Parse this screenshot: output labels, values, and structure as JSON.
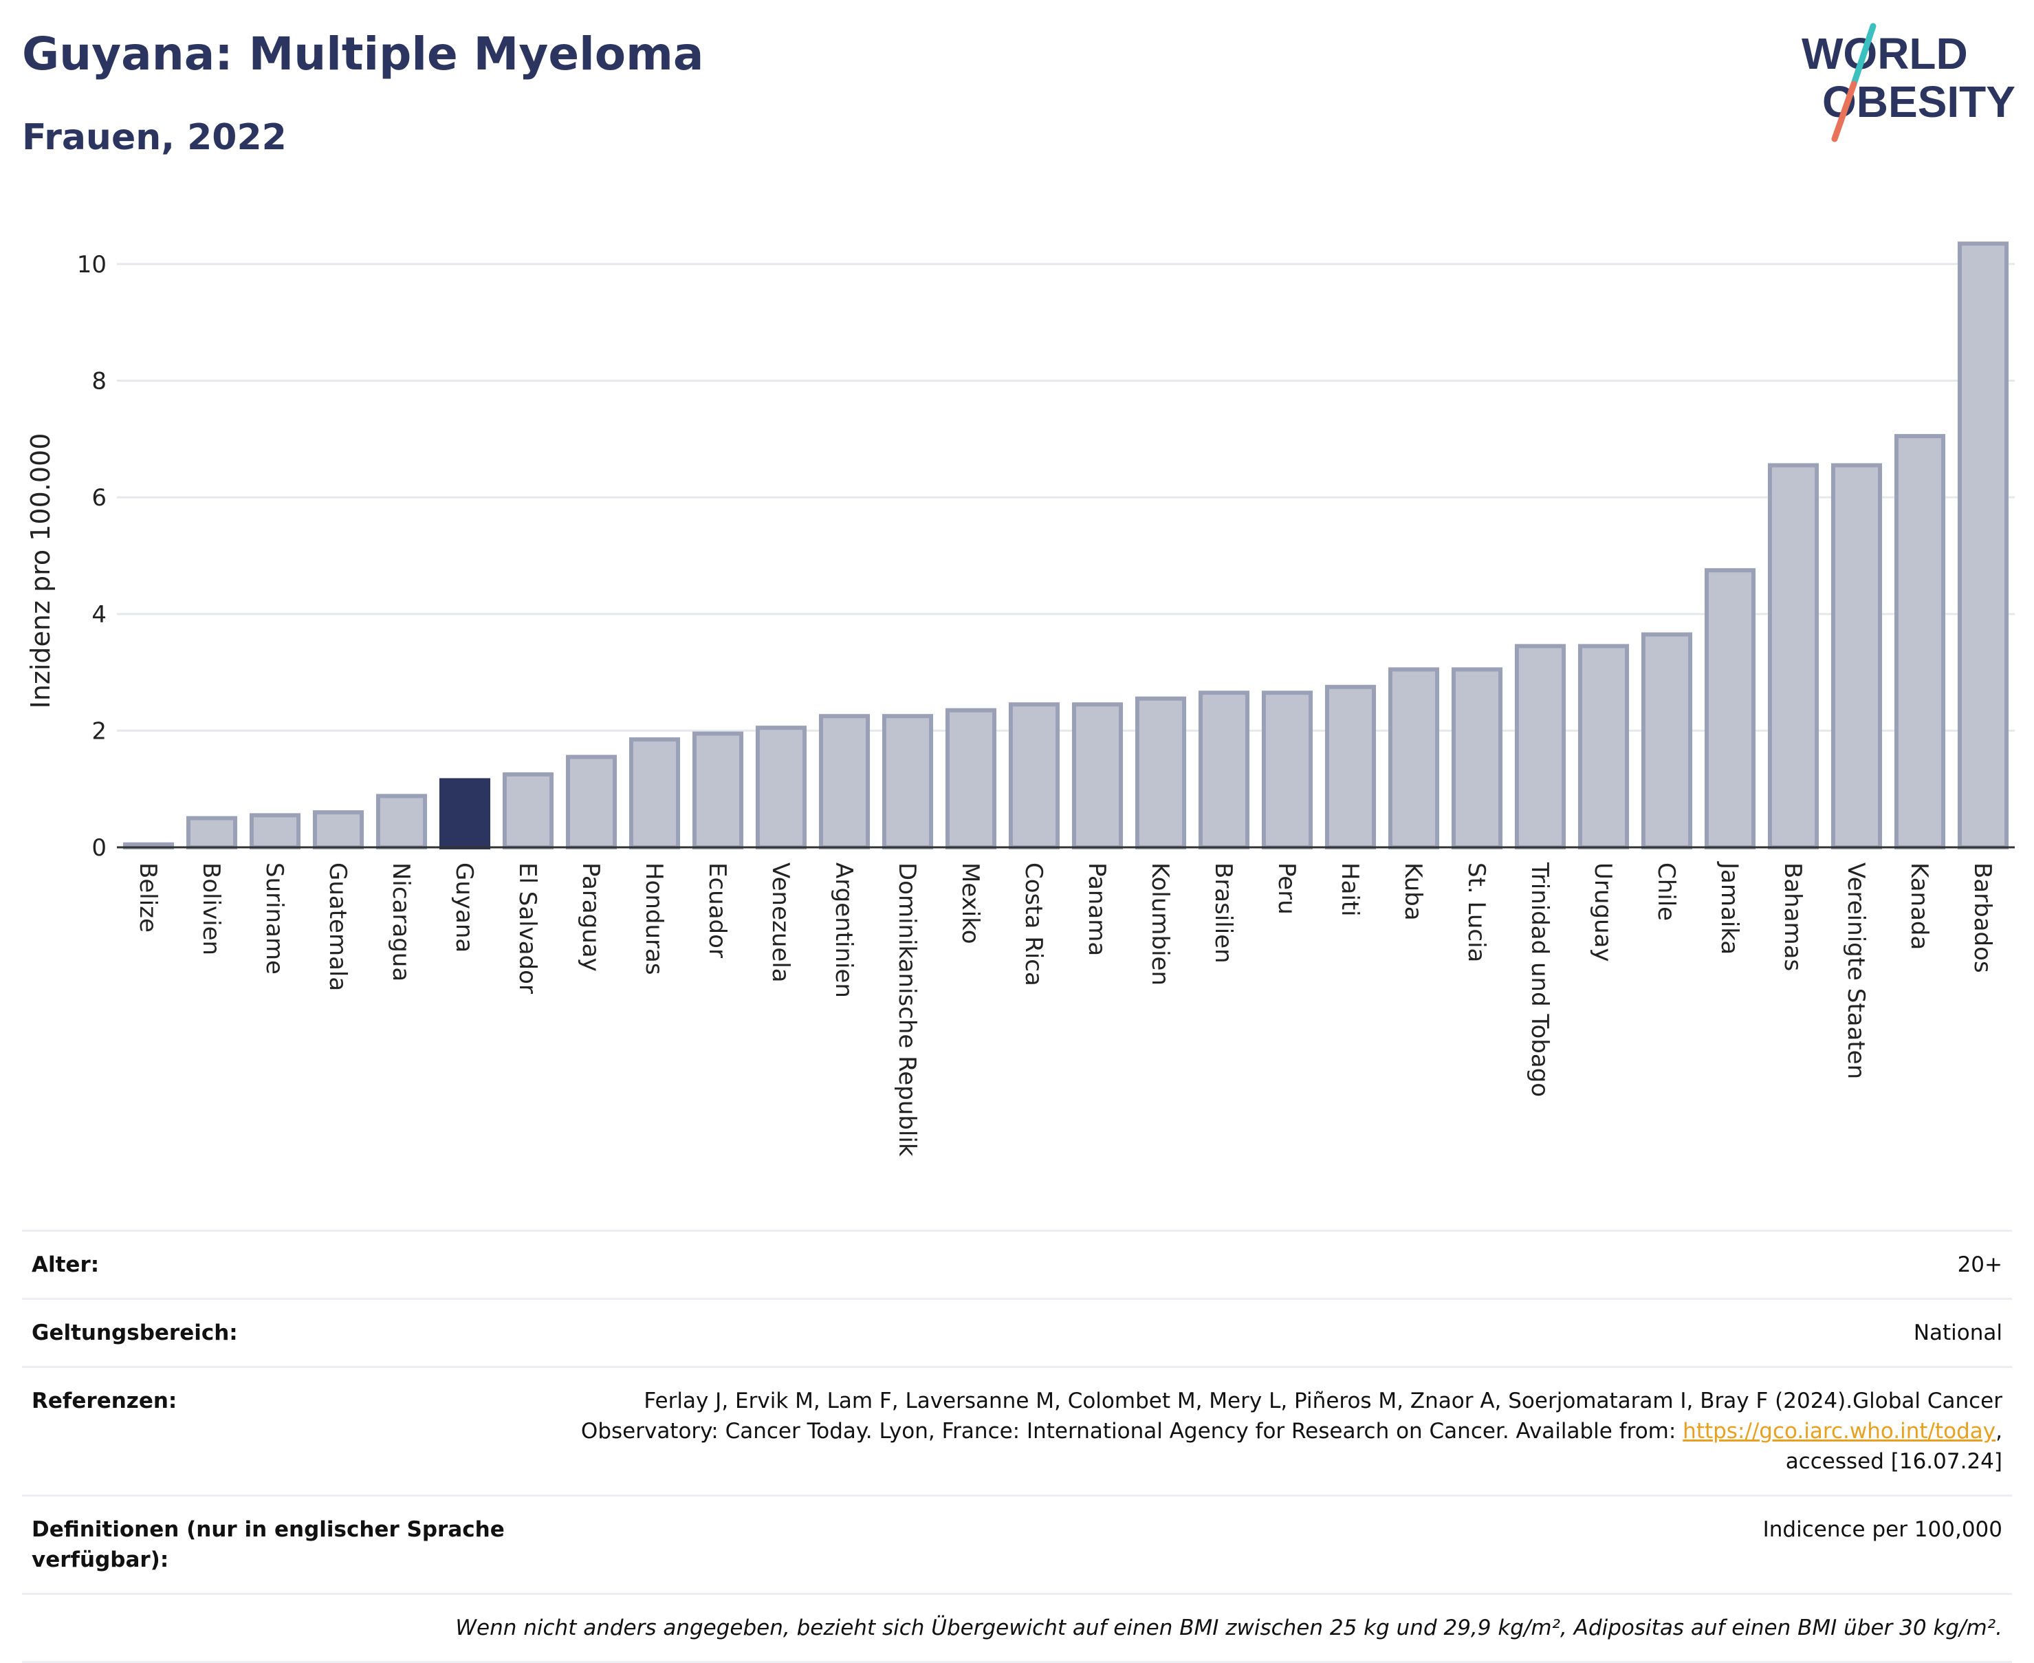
{
  "header": {
    "title": "Guyana: Multiple Myeloma",
    "subtitle": "Frauen, 2022",
    "logo_line1": "WORLD",
    "logo_line2": "OBESITY"
  },
  "colors": {
    "title": "#2b3560",
    "highlight_bar": "#2b3560",
    "bar_fill": "#bfc2cf",
    "bar_stroke": "#9aa0b6",
    "link": "#e8a020",
    "logo_teal": "#3bbfbf",
    "logo_coral": "#e8735a"
  },
  "chart_data": {
    "type": "bar",
    "ylabel": "Inzidenz pro 100.000",
    "xlabel": "",
    "ylim": [
      0,
      10.4
    ],
    "yticks": [
      0,
      2,
      4,
      6,
      8,
      10
    ],
    "grid": true,
    "highlight": "Guyana",
    "categories": [
      "Belize",
      "Bolivien",
      "Suriname",
      "Guatemala",
      "Nicaragua",
      "Guyana",
      "El Salvador",
      "Paraguay",
      "Honduras",
      "Ecuador",
      "Venezuela",
      "Argentinien",
      "Dominikanische Republik",
      "Mexiko",
      "Costa Rica",
      "Panama",
      "Kolumbien",
      "Brasilien",
      "Peru",
      "Haiti",
      "Kuba",
      "St. Lucia",
      "Trinidad und Tobago",
      "Uruguay",
      "Chile",
      "Jamaika",
      "Bahamas",
      "Vereinigte Staaten",
      "Kanada",
      "Barbados"
    ],
    "values": [
      0.05,
      0.5,
      0.55,
      0.6,
      0.88,
      1.15,
      1.25,
      1.55,
      1.85,
      1.95,
      2.05,
      2.25,
      2.25,
      2.35,
      2.45,
      2.45,
      2.55,
      2.65,
      2.65,
      2.75,
      3.05,
      3.05,
      3.45,
      3.45,
      3.65,
      4.75,
      6.55,
      6.55,
      7.05,
      10.35
    ]
  },
  "info": {
    "age_label": "Alter:",
    "age_value": "20+",
    "scope_label": "Geltungsbereich:",
    "scope_value": "National",
    "ref_label": "Referenzen:",
    "ref_text_1": "Ferlay J, Ervik M, Lam F, Laversanne M, Colombet M, Mery L, Piñeros M, Znaor A, Soerjomataram I, Bray F (2024).Global Cancer Observatory: Cancer Today. Lyon, France: International Agency for Research on Cancer. Available from: ",
    "ref_link": "https://gco.iarc.who.int/today",
    "ref_text_2": ", accessed [16.07.24]",
    "def_label": "Definitionen (nur in englischer Sprache verfügbar):",
    "def_value": "Indicence per 100,000",
    "note": "Wenn nicht anders angegeben, bezieht sich Übergewicht auf einen BMI zwischen 25 kg und 29,9 kg/m², Adipositas auf einen BMI über 30 kg/m²."
  }
}
